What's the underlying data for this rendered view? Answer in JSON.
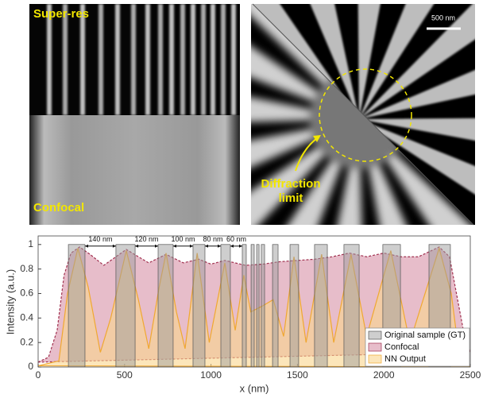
{
  "images": {
    "super_res_label": "Super-res",
    "confocal_label": "Confocal",
    "scale_bar_label": "500 nm",
    "diffraction_label": [
      "Diffraction",
      "limit"
    ]
  },
  "chart_data": {
    "type": "area",
    "xlabel": "x (nm)",
    "ylabel": "Intensity (a.u.)",
    "xlim": [
      0,
      2500
    ],
    "xticks": [
      0,
      500,
      1000,
      1500,
      2000,
      2500
    ],
    "ylim": [
      0,
      1.07
    ],
    "yticks": [
      0,
      0.2,
      0.4,
      0.6,
      0.8,
      1
    ],
    "annotations": [
      "140 nm",
      "120 nm",
      "100 nm",
      "80 nm",
      "60 nm"
    ],
    "series": [
      {
        "name": "Original sample (GT)",
        "color": "#9e9e9e",
        "starts": [
          175,
          450,
          694,
          896,
          1057,
          1181,
          1232,
          1264,
          1291,
          1356,
          1457,
          1599,
          1769,
          1994,
          2261
        ],
        "ends": [
          271,
          561,
          781,
          965,
          1112,
          1204,
          1250,
          1278,
          1310,
          1388,
          1507,
          1673,
          1857,
          2096,
          2385
        ],
        "values": [
          1,
          1,
          1,
          1,
          1,
          1,
          1,
          1,
          1,
          1,
          1,
          1,
          1,
          1,
          1
        ]
      },
      {
        "name": "Confocal",
        "color": "#d4869f",
        "x": [
          0,
          60,
          110,
          150,
          190,
          240,
          300,
          380,
          450,
          510,
          580,
          640,
          740,
          840,
          930,
          1000,
          1080,
          1200,
          1300,
          1400,
          1500,
          1600,
          1700,
          1800,
          1900,
          2000,
          2100,
          2200,
          2320,
          2380,
          2420,
          2460,
          2500
        ],
        "values": [
          0.04,
          0.08,
          0.3,
          0.75,
          0.93,
          0.98,
          0.92,
          0.83,
          0.9,
          0.96,
          0.9,
          0.85,
          0.92,
          0.85,
          0.88,
          0.84,
          0.87,
          0.83,
          0.84,
          0.86,
          0.87,
          0.88,
          0.9,
          0.93,
          0.9,
          0.93,
          0.9,
          0.9,
          0.98,
          0.9,
          0.6,
          0.3,
          0.12
        ]
      },
      {
        "name": "NN Output",
        "color": "#fad58c",
        "x": [
          0,
          120,
          170,
          230,
          290,
          360,
          420,
          510,
          580,
          640,
          700,
          740,
          800,
          850,
          920,
          990,
          1080,
          1140,
          1190,
          1230,
          1300,
          1360,
          1420,
          1480,
          1550,
          1640,
          1710,
          1810,
          1900,
          2040,
          2150,
          2320,
          2390,
          2440,
          2500
        ],
        "values": [
          0.01,
          0.05,
          0.6,
          0.97,
          0.65,
          0.12,
          0.4,
          0.95,
          0.55,
          0.15,
          0.65,
          0.93,
          0.45,
          0.15,
          0.93,
          0.2,
          0.85,
          0.3,
          0.75,
          0.45,
          0.5,
          0.55,
          0.25,
          0.9,
          0.2,
          0.92,
          0.2,
          0.92,
          0.25,
          0.95,
          0.2,
          0.97,
          0.6,
          0.05,
          0
        ]
      }
    ]
  }
}
